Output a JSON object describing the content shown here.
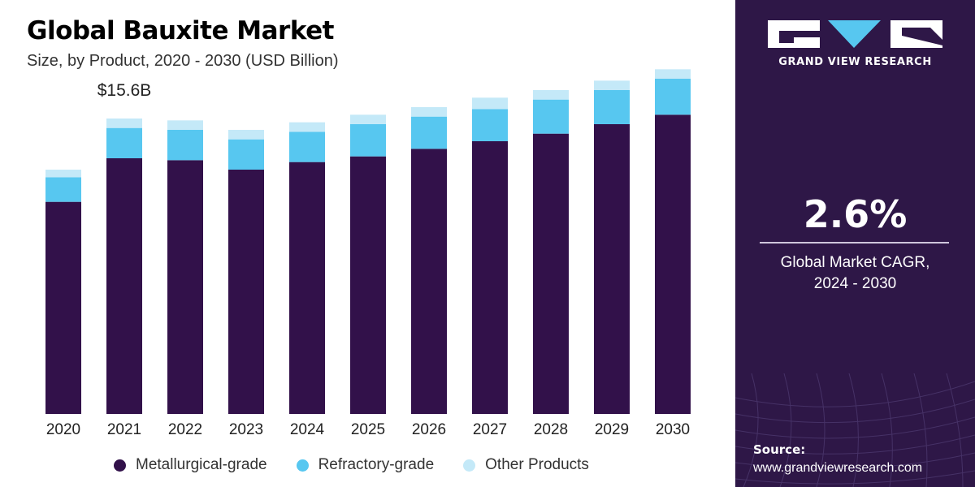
{
  "header": {
    "title": "Global Bauxite Market",
    "subtitle": "Size, by Product, 2020 - 2030 (USD Billion)"
  },
  "brand": {
    "name": "GRAND VIEW RESEARCH",
    "logo_icon": "gvr-logo-icon"
  },
  "cagr": {
    "value": "2.6%",
    "label_line1": "Global Market CAGR,",
    "label_line2": "2024 - 2030"
  },
  "source": {
    "label": "Source:",
    "url": "www.grandviewresearch.com"
  },
  "colors": {
    "metallurgical": "#32114a",
    "refractory": "#57c7f0",
    "other": "#c4e9f8",
    "sidebar_bg": "#2e1747"
  },
  "chart_data": {
    "type": "bar",
    "stacked": true,
    "title": "Global Bauxite Market",
    "subtitle": "Size, by Product, 2020 - 2030 (USD Billion)",
    "categories": [
      "2020",
      "2021",
      "2022",
      "2023",
      "2024",
      "2025",
      "2026",
      "2027",
      "2028",
      "2029",
      "2030"
    ],
    "series": [
      {
        "name": "Metallurgical-grade",
        "values": [
          11.2,
          13.5,
          13.4,
          12.9,
          13.3,
          13.6,
          14.0,
          14.4,
          14.8,
          15.3,
          15.8
        ]
      },
      {
        "name": "Refractory-grade",
        "values": [
          1.3,
          1.6,
          1.6,
          1.6,
          1.6,
          1.7,
          1.7,
          1.7,
          1.8,
          1.8,
          1.9
        ]
      },
      {
        "name": "Other Products",
        "values": [
          0.4,
          0.5,
          0.5,
          0.5,
          0.5,
          0.5,
          0.5,
          0.6,
          0.5,
          0.5,
          0.5
        ]
      }
    ],
    "annotations": [
      {
        "category": "2021",
        "text": "$15.6B"
      }
    ],
    "ylim": [
      0,
      18
    ],
    "grid": false,
    "legend_position": "bottom"
  }
}
